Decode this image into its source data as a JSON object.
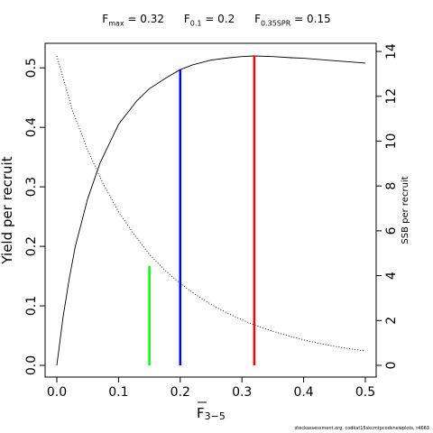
{
  "header": {
    "refs": [
      {
        "sym": "F",
        "sub": "max",
        "text": " = 0.32"
      },
      {
        "sym": "F",
        "sub": "0.1",
        "text": " = 0.2"
      },
      {
        "sym": "F",
        "sub": "0.35SPR",
        "text": " = 0.15"
      }
    ]
  },
  "footer": {
    "text": "stockassessment.org, codkat15skcmtpcodsnewplots, r4663"
  },
  "chart_data": {
    "type": "line",
    "xlabel": {
      "main": "F",
      "sub": "3−5"
    },
    "ylabel": "Yield per recruit",
    "y2label": "SSB per recruit",
    "xlim": [
      0,
      0.5
    ],
    "ylim": [
      0,
      0.52
    ],
    "y2lim": [
      0,
      13.8
    ],
    "xticks": [
      "0.0",
      "0.1",
      "0.2",
      "0.3",
      "0.4",
      "0.5"
    ],
    "yticks": [
      "0.0",
      "0.1",
      "0.2",
      "0.3",
      "0.4",
      "0.5"
    ],
    "y2ticks": [
      "0",
      "2",
      "4",
      "6",
      "8",
      "10",
      "12",
      "14"
    ],
    "series": [
      {
        "axis": "left",
        "style": "solid",
        "color": "#000000",
        "x": [
          0,
          0.01,
          0.02,
          0.03,
          0.05,
          0.07,
          0.1,
          0.13,
          0.15,
          0.18,
          0.2,
          0.22,
          0.25,
          0.28,
          0.3,
          0.32,
          0.35,
          0.38,
          0.4,
          0.45,
          0.5
        ],
        "y": [
          0,
          0.08,
          0.145,
          0.2,
          0.28,
          0.34,
          0.405,
          0.445,
          0.465,
          0.485,
          0.497,
          0.505,
          0.513,
          0.517,
          0.519,
          0.52,
          0.519,
          0.517,
          0.516,
          0.512,
          0.508
        ]
      },
      {
        "axis": "right",
        "style": "dotted",
        "color": "#000000",
        "x": [
          0,
          0.025,
          0.05,
          0.075,
          0.1,
          0.125,
          0.15,
          0.175,
          0.2,
          0.225,
          0.25,
          0.275,
          0.3,
          0.325,
          0.35,
          0.375,
          0.4,
          0.425,
          0.45,
          0.475,
          0.5
        ],
        "y": [
          13.8,
          11.4,
          9.6,
          8.1,
          6.85,
          5.85,
          4.95,
          4.25,
          3.65,
          3.15,
          2.72,
          2.35,
          2.03,
          1.75,
          1.52,
          1.32,
          1.14,
          0.98,
          0.85,
          0.74,
          0.64
        ]
      }
    ],
    "vlines": [
      {
        "x": 0.32,
        "y": 0.52,
        "color": "#ff0000"
      },
      {
        "x": 0.2,
        "y": 0.497,
        "color": "#0000ff"
      },
      {
        "x": 0.15,
        "y": 0.167,
        "color": "#00ff00"
      }
    ]
  }
}
